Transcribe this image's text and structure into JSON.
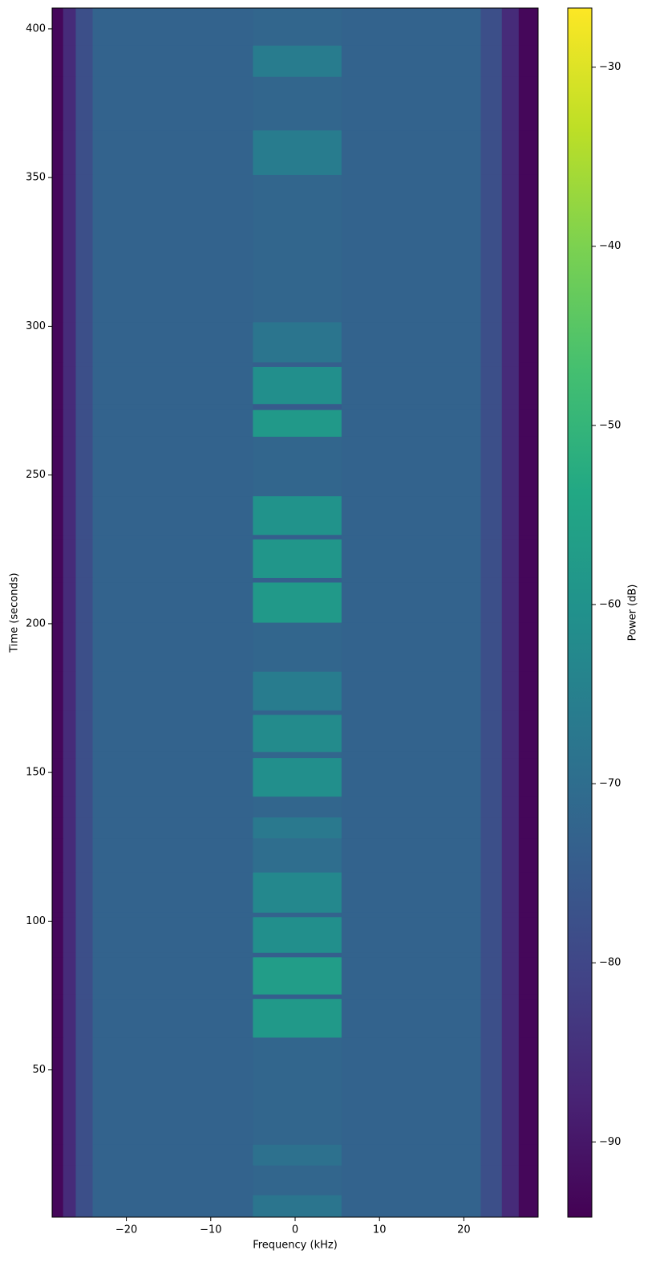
{
  "chart_data": {
    "type": "heatmap",
    "colormap": "viridis",
    "xlabel": "Frequency (kHz)",
    "ylabel": "Time (seconds)",
    "colorbar_label": "Power (dB)",
    "xlim": [
      -28.8,
      28.8
    ],
    "ylim": [
      0.5,
      407
    ],
    "clim": [
      -94.2,
      -26.7
    ],
    "xticks": [
      {
        "value": -20,
        "label": "−20"
      },
      {
        "value": -10,
        "label": "−10"
      },
      0,
      10,
      20
    ],
    "yticks": [
      50,
      100,
      150,
      200,
      250,
      300,
      350,
      400
    ],
    "cticks": [
      {
        "value": -90,
        "label": "−90"
      },
      {
        "value": -80,
        "label": "−80"
      },
      {
        "value": -70,
        "label": "−70"
      },
      {
        "value": -60,
        "label": "−60"
      },
      {
        "value": -50,
        "label": "−50"
      },
      {
        "value": -40,
        "label": "−40"
      },
      {
        "value": -30,
        "label": "−30"
      }
    ],
    "x": [
      -28.8,
      -27.5,
      -26,
      -24,
      -5,
      5.5,
      22,
      24.5,
      26.5,
      28.8
    ],
    "y": [
      0.5,
      8,
      18,
      25,
      61,
      74,
      75.5,
      88,
      89.5,
      101.5,
      103,
      116.5,
      128,
      135,
      142,
      155,
      157,
      169.5,
      171,
      184,
      200.5,
      214,
      215.5,
      228.5,
      230,
      243,
      263,
      272,
      274,
      286.5,
      288,
      301.5,
      351,
      366,
      384,
      394.5,
      407
    ],
    "z": [
      [
        -93,
        -86,
        -78,
        -73,
        -68,
        -73,
        -78,
        -86,
        -93
      ],
      [
        -93,
        -86,
        -78,
        -73,
        -72,
        -73,
        -78,
        -86,
        -93
      ],
      [
        -93,
        -86,
        -78,
        -73,
        -69,
        -73,
        -78,
        -86,
        -93
      ],
      [
        -93,
        -86,
        -78,
        -73,
        -72,
        -73,
        -78,
        -86,
        -93
      ],
      [
        -93,
        -86,
        -78,
        -73,
        -58,
        -73,
        -78,
        -86,
        -93
      ],
      [
        -93,
        -86,
        -78,
        -73,
        -74,
        -73,
        -78,
        -86,
        -93
      ],
      [
        -93,
        -86,
        -78,
        -73,
        -57,
        -73,
        -78,
        -86,
        -93
      ],
      [
        -93,
        -86,
        -78,
        -73,
        -74,
        -73,
        -78,
        -86,
        -93
      ],
      [
        -93,
        -86,
        -78,
        -73,
        -61,
        -73,
        -78,
        -86,
        -93
      ],
      [
        -93,
        -86,
        -78,
        -73,
        -73,
        -73,
        -78,
        -86,
        -93
      ],
      [
        -93,
        -86,
        -78,
        -73,
        -63,
        -73,
        -78,
        -86,
        -93
      ],
      [
        -93,
        -86,
        -78,
        -73,
        -70,
        -73,
        -78,
        -86,
        -93
      ],
      [
        -93,
        -86,
        -78,
        -73,
        -67,
        -73,
        -78,
        -86,
        -93
      ],
      [
        -93,
        -86,
        -78,
        -73,
        -72,
        -73,
        -78,
        -86,
        -93
      ],
      [
        -93,
        -86,
        -78,
        -73,
        -61,
        -73,
        -78,
        -86,
        -93
      ],
      [
        -93,
        -86,
        -78,
        -73,
        -72,
        -73,
        -78,
        -86,
        -93
      ],
      [
        -93,
        -86,
        -78,
        -73,
        -62,
        -73,
        -78,
        -86,
        -93
      ],
      [
        -93,
        -86,
        -78,
        -73,
        -73,
        -73,
        -78,
        -86,
        -93
      ],
      [
        -93,
        -86,
        -78,
        -73,
        -66,
        -73,
        -78,
        -86,
        -93
      ],
      [
        -93,
        -86,
        -78,
        -73,
        -72,
        -73,
        -78,
        -86,
        -93
      ],
      [
        -93,
        -86,
        -78,
        -73,
        -58,
        -73,
        -78,
        -86,
        -93
      ],
      [
        -93,
        -86,
        -78,
        -73,
        -74,
        -73,
        -78,
        -86,
        -93
      ],
      [
        -93,
        -86,
        -78,
        -73,
        -59,
        -73,
        -78,
        -86,
        -93
      ],
      [
        -93,
        -86,
        -78,
        -73,
        -74,
        -73,
        -78,
        -86,
        -93
      ],
      [
        -93,
        -86,
        -78,
        -73,
        -60,
        -73,
        -78,
        -86,
        -93
      ],
      [
        -93,
        -86,
        -78,
        -73,
        -72,
        -73,
        -78,
        -86,
        -93
      ],
      [
        -93,
        -86,
        -78,
        -73,
        -58,
        -73,
        -78,
        -86,
        -93
      ],
      [
        -93,
        -86,
        -78,
        -73,
        -75,
        -73,
        -78,
        -86,
        -93
      ],
      [
        -93,
        -86,
        -78,
        -73,
        -61,
        -73,
        -78,
        -86,
        -93
      ],
      [
        -93,
        -86,
        -78,
        -73,
        -74,
        -73,
        -78,
        -86,
        -93
      ],
      [
        -93,
        -86,
        -78,
        -73,
        -68,
        -73,
        -78,
        -86,
        -93
      ],
      [
        -93,
        -86,
        -78,
        -73,
        -72,
        -73,
        -78,
        -86,
        -93
      ],
      [
        -93,
        -86,
        -78,
        -73,
        -66,
        -73,
        -78,
        -86,
        -93
      ],
      [
        -93,
        -86,
        -78,
        -73,
        -72,
        -73,
        -78,
        -86,
        -93
      ],
      [
        -93,
        -86,
        -78,
        -73,
        -66,
        -73,
        -78,
        -86,
        -93
      ],
      [
        -93,
        -86,
        -78,
        -73,
        -72,
        -73,
        -78,
        -86,
        -93
      ]
    ]
  }
}
